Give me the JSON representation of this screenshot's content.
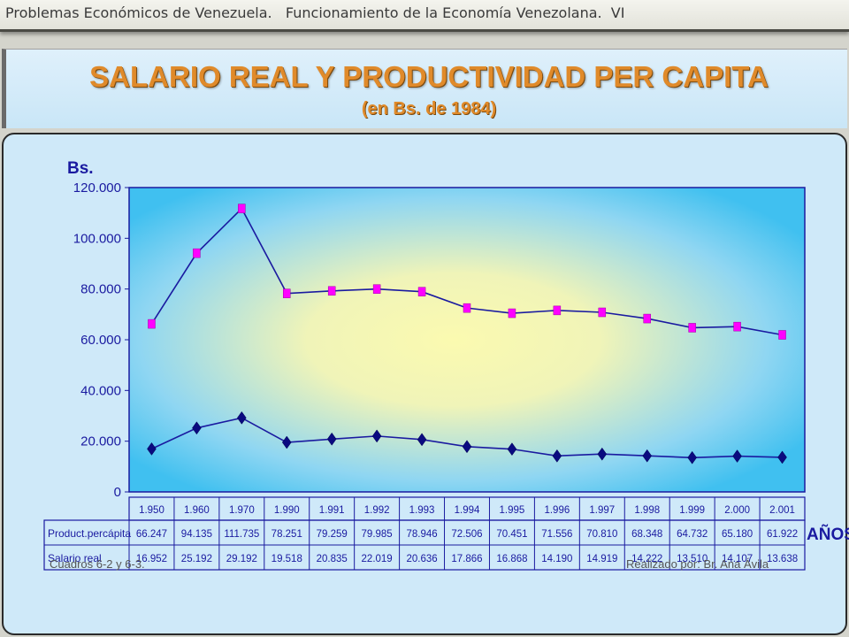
{
  "header": {
    "left": "Problemas Económicos de Venezuela.",
    "right": "Funcionamiento de la Economía Venezolana.  VI"
  },
  "title": "SALARIO REAL Y PRODUCTIVIDAD PER CAPITA",
  "subtitle": "(en Bs. de 1984)",
  "footer": {
    "source": "Cuadros 6-2 y 6-3.",
    "author": "Realizado por: Br. Ana Ávila"
  },
  "colors": {
    "product_line": "#1a1aa0",
    "product_marker": "#ff00ff",
    "salary_line": "#1a1aa0",
    "salary_marker": "#0a0a80",
    "axis_text": "#1a1aa0",
    "yaxis_label": "#1a1aa0"
  },
  "chart_data": {
    "type": "line",
    "ylabel": "Bs.",
    "xlabel": "AÑOS",
    "ylim": [
      0,
      120000
    ],
    "ytick_labels": [
      "0",
      "20.000",
      "40.000",
      "60.000",
      "80.000",
      "100.000",
      "120.000"
    ],
    "categories": [
      "1.950",
      "1.960",
      "1.970",
      "1.990",
      "1.991",
      "1.992",
      "1.993",
      "1.994",
      "1.995",
      "1.996",
      "1.997",
      "1.998",
      "1.999",
      "2.000",
      "2.001"
    ],
    "series": [
      {
        "name": "Product.percápita",
        "values": [
          66247,
          94135,
          111735,
          78251,
          79259,
          79985,
          78946,
          72506,
          70451,
          71556,
          70810,
          68348,
          64732,
          65180,
          61922
        ],
        "labels": [
          "66.247",
          "94.135",
          "111.735",
          "78.251",
          "79.259",
          "79.985",
          "78.946",
          "72.506",
          "70.451",
          "71.556",
          "70.810",
          "68.348",
          "64.732",
          "65.180",
          "61.922"
        ],
        "marker": "square"
      },
      {
        "name": "Salario real",
        "values": [
          16952,
          25192,
          29192,
          19518,
          20835,
          22019,
          20636,
          17866,
          16868,
          14190,
          14919,
          14222,
          13510,
          14107,
          13638
        ],
        "labels": [
          "16.952",
          "25.192",
          "29.192",
          "19.518",
          "20.835",
          "22.019",
          "20.636",
          "17.866",
          "16.868",
          "14.190",
          "14.919",
          "14.222",
          "13.510",
          "14.107",
          "13.638"
        ],
        "marker": "diamond"
      }
    ],
    "grid": false,
    "legend": "table-below"
  }
}
